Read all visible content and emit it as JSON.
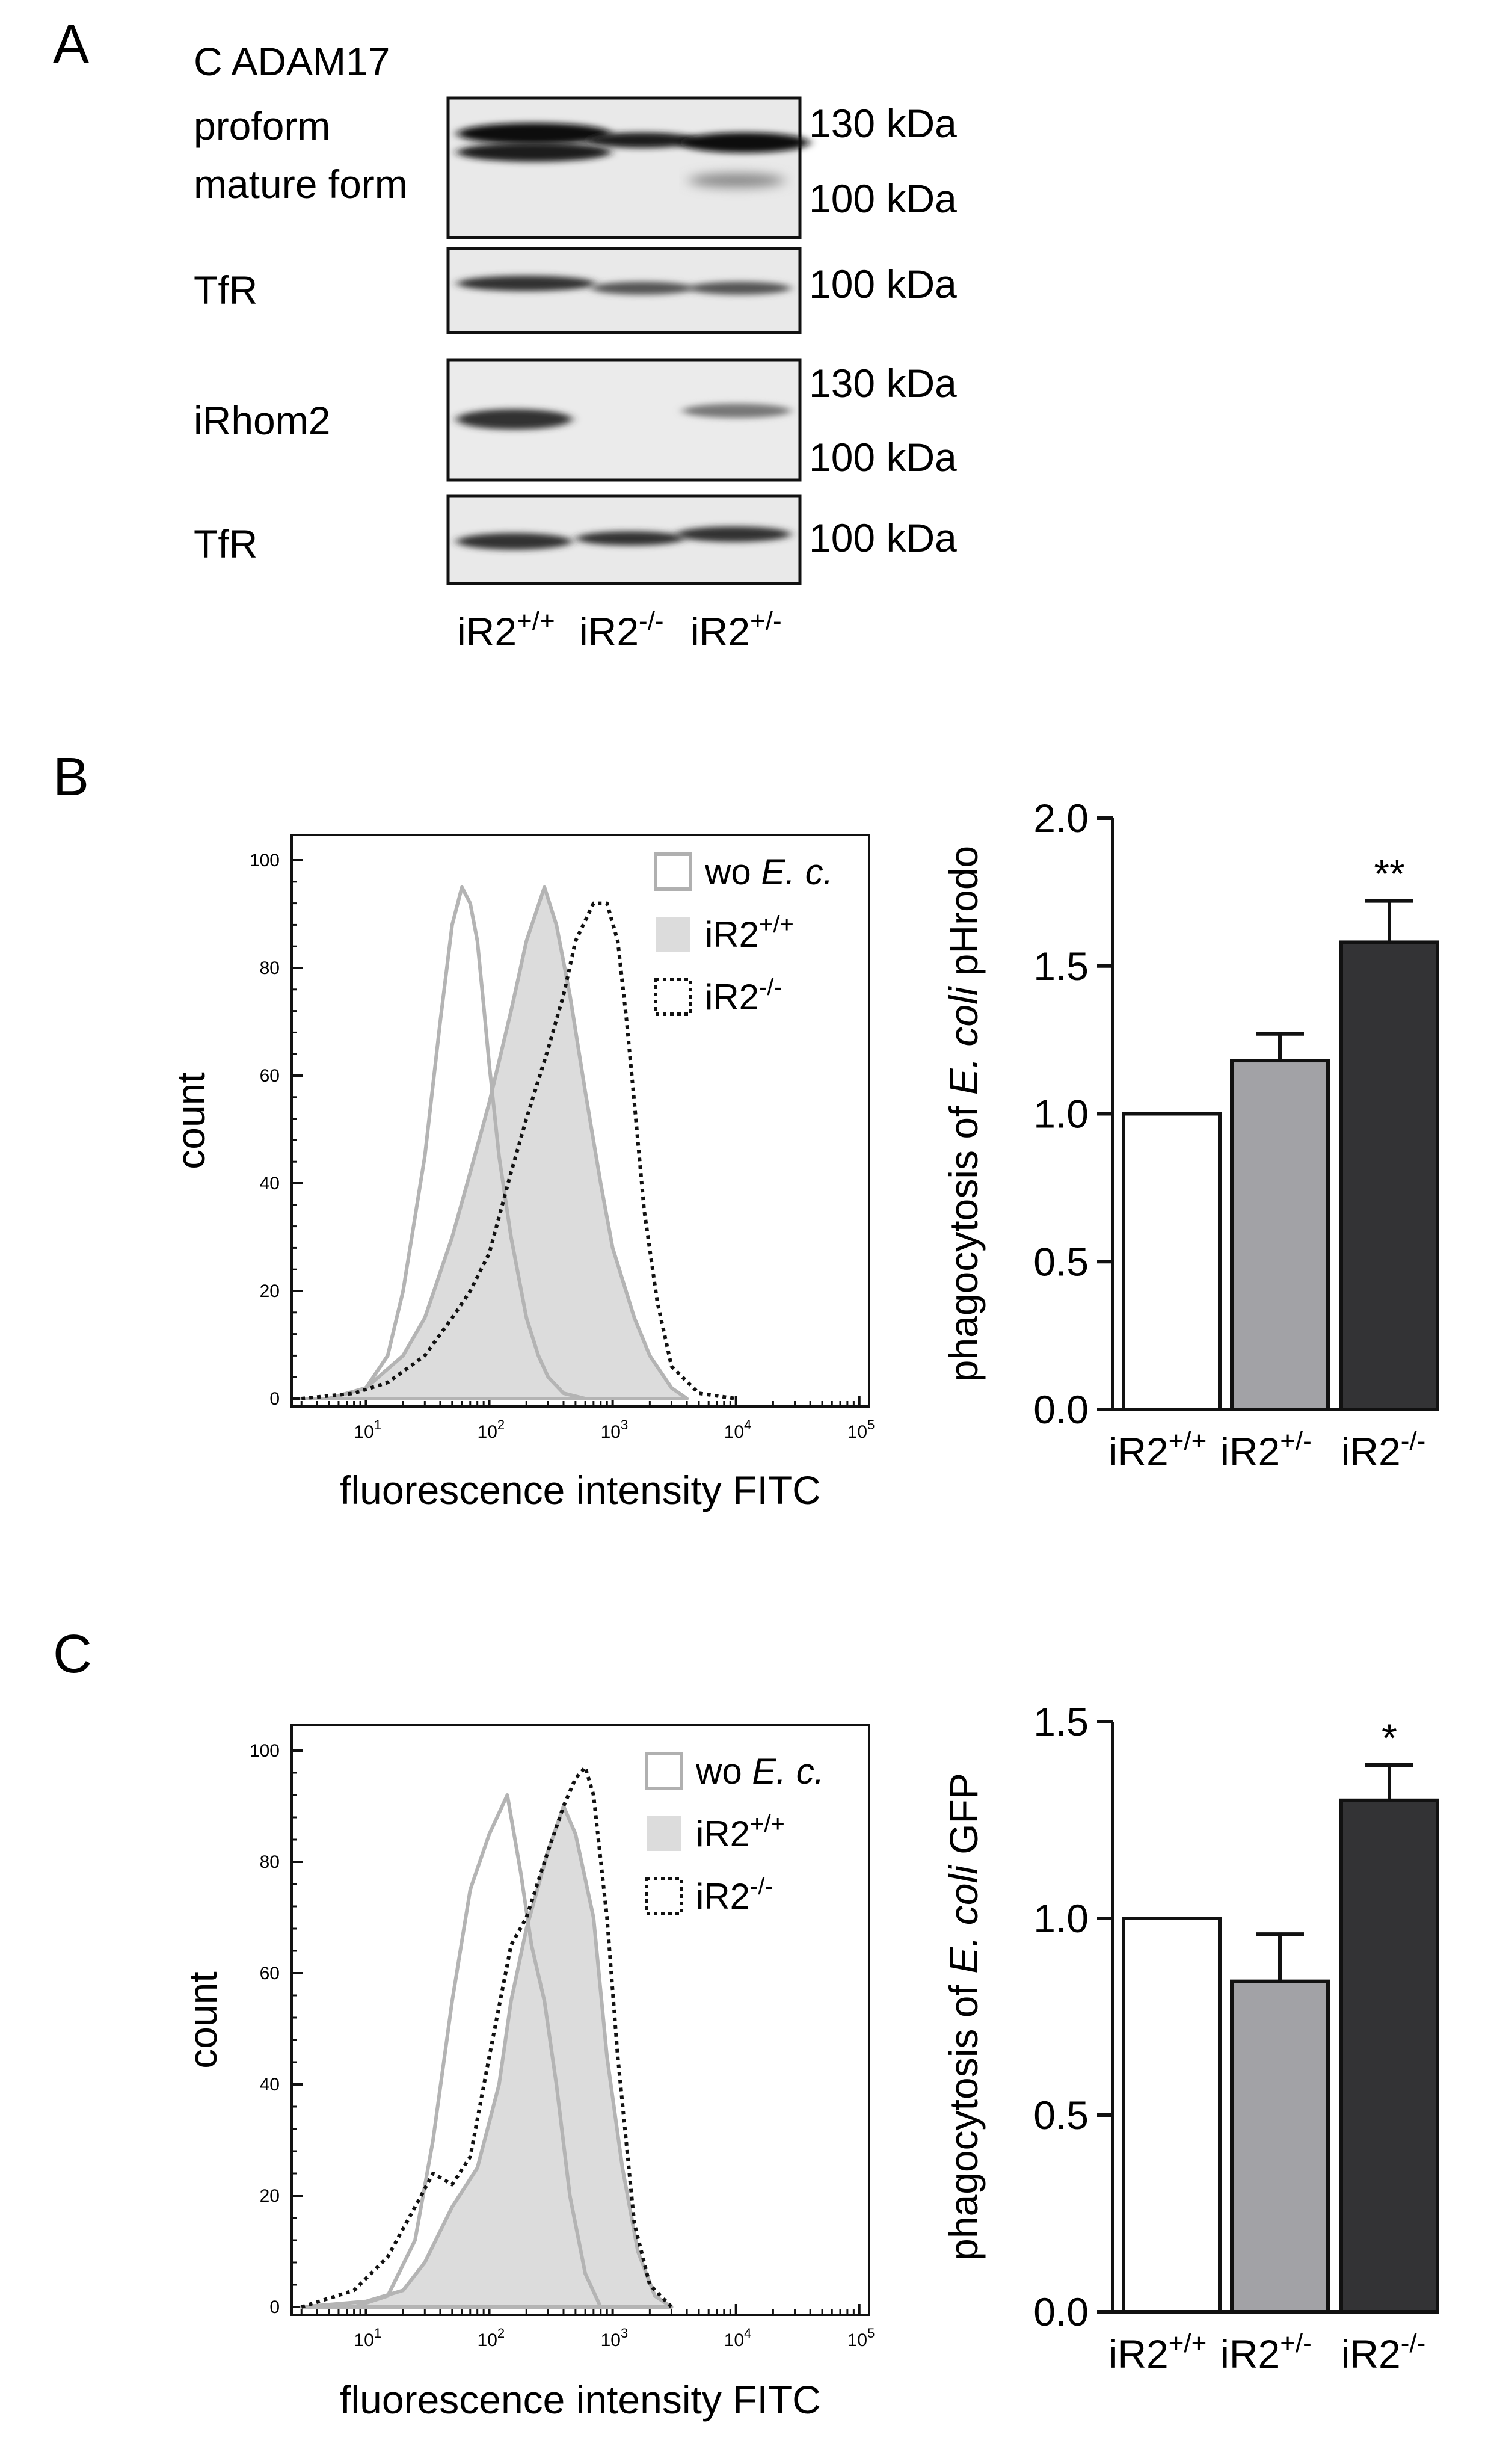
{
  "panels": {
    "a": {
      "letter": "A",
      "header": "C ADAM17",
      "blots": [
        {
          "name": "adam17",
          "labels": [
            "proform",
            "mature form"
          ],
          "markers": [
            "130 kDa",
            "100 kDa"
          ]
        },
        {
          "name": "tfr-1",
          "labels": [
            "TfR"
          ],
          "markers": [
            "100 kDa"
          ]
        },
        {
          "name": "irhom2",
          "labels": [
            "iRhom2"
          ],
          "markers": [
            "130 kDa",
            "100 kDa"
          ]
        },
        {
          "name": "tfr-2",
          "labels": [
            "TfR"
          ],
          "markers": [
            "100 kDa"
          ]
        }
      ],
      "lanes": [
        {
          "base": "iR2",
          "sup": "+/+"
        },
        {
          "base": "iR2",
          "sup": "-/-"
        },
        {
          "base": "iR2",
          "sup": "+/-"
        }
      ]
    },
    "b": {
      "letter": "B"
    },
    "c": {
      "letter": "C"
    }
  },
  "chart_data": [
    {
      "id": "b-histogram",
      "type": "area",
      "xlabel": "fluorescence intensity FITC",
      "ylabel": "count",
      "xscale": "log",
      "xlim": [
        2.5,
        120000
      ],
      "ylim": [
        0,
        100
      ],
      "xticks": [
        {
          "base": "10",
          "exp": "1"
        },
        {
          "base": "10",
          "exp": "2"
        },
        {
          "base": "10",
          "exp": "3"
        },
        {
          "base": "10",
          "exp": "4"
        },
        {
          "base": "10",
          "exp": "5"
        }
      ],
      "xtick_values": [
        10,
        100,
        1000,
        10000,
        100000
      ],
      "yticks": [
        0,
        20,
        40,
        60,
        80,
        100
      ],
      "legend": [
        {
          "prefix": "wo ",
          "italic": "E. c.",
          "sup": "",
          "style": "outline-grey"
        },
        {
          "prefix": "iR2",
          "italic": "",
          "sup": "+/+",
          "style": "filled-grey"
        },
        {
          "prefix": "iR2",
          "italic": "",
          "sup": "-/-",
          "style": "dotted-black"
        }
      ],
      "series": [
        {
          "name": "wo E. c.",
          "x": [
            3,
            5,
            10,
            15,
            20,
            30,
            40,
            50,
            60,
            70,
            80,
            90,
            100,
            120,
            150,
            200,
            250,
            300,
            400,
            600
          ],
          "y": [
            0,
            0,
            2,
            8,
            20,
            45,
            70,
            88,
            95,
            92,
            85,
            73,
            62,
            45,
            30,
            15,
            8,
            4,
            1,
            0
          ]
        },
        {
          "name": "iR2+/+",
          "x": [
            3,
            5,
            10,
            20,
            30,
            50,
            70,
            100,
            150,
            200,
            280,
            350,
            450,
            600,
            800,
            1000,
            1500,
            2000,
            3000,
            4000
          ],
          "y": [
            0,
            0,
            2,
            8,
            15,
            30,
            42,
            55,
            72,
            85,
            95,
            88,
            75,
            57,
            40,
            28,
            15,
            8,
            2,
            0
          ]
        },
        {
          "name": "iR2-/-",
          "x": [
            3,
            8,
            15,
            30,
            50,
            70,
            100,
            150,
            200,
            300,
            400,
            500,
            700,
            900,
            1100,
            1300,
            1500,
            1800,
            2300,
            3000,
            5000,
            10000
          ],
          "y": [
            0,
            1,
            3,
            8,
            15,
            20,
            27,
            42,
            52,
            65,
            75,
            85,
            92,
            92,
            85,
            70,
            55,
            35,
            18,
            6,
            1,
            0
          ]
        }
      ]
    },
    {
      "id": "b-bars",
      "type": "bar",
      "ylabel": {
        "pre": "phagocytosis of ",
        "italic": "E. coli",
        "post": " pHrodo"
      },
      "categories": [
        {
          "base": "iR2",
          "sup": "+/+"
        },
        {
          "base": "iR2",
          "sup": "+/-"
        },
        {
          "base": "iR2",
          "sup": "-/-"
        }
      ],
      "values": [
        1.0,
        1.18,
        1.58
      ],
      "errors": [
        0,
        0.09,
        0.14
      ],
      "colors": [
        "#ffffff",
        "#a2a2a6",
        "#333335"
      ],
      "annotations": [
        "",
        "",
        "**"
      ],
      "yticks": [
        "0.0",
        "0.5",
        "1.0",
        "1.5",
        "2.0"
      ],
      "ylim": [
        0,
        2.0
      ]
    },
    {
      "id": "c-histogram",
      "type": "area",
      "xlabel": "fluorescence intensity FITC",
      "ylabel": "count",
      "xscale": "log",
      "xlim": [
        2.5,
        120000
      ],
      "ylim": [
        0,
        100
      ],
      "xticks": [
        {
          "base": "10",
          "exp": "1"
        },
        {
          "base": "10",
          "exp": "2"
        },
        {
          "base": "10",
          "exp": "3"
        },
        {
          "base": "10",
          "exp": "4"
        },
        {
          "base": "10",
          "exp": "5"
        }
      ],
      "xtick_values": [
        10,
        100,
        1000,
        10000,
        100000
      ],
      "yticks": [
        0,
        20,
        40,
        60,
        80,
        100
      ],
      "legend": [
        {
          "prefix": "wo ",
          "italic": "E. c.",
          "sup": "",
          "style": "outline-grey"
        },
        {
          "prefix": "iR2",
          "italic": "",
          "sup": "+/+",
          "style": "filled-grey"
        },
        {
          "prefix": "iR2",
          "italic": "",
          "sup": "-/-",
          "style": "dotted-black"
        }
      ],
      "series": [
        {
          "name": "wo E. c.",
          "x": [
            3,
            8,
            15,
            25,
            35,
            50,
            70,
            100,
            140,
            180,
            220,
            280,
            350,
            450,
            600,
            800
          ],
          "y": [
            0,
            0,
            2,
            12,
            30,
            55,
            75,
            85,
            92,
            78,
            65,
            55,
            40,
            20,
            6,
            0
          ]
        },
        {
          "name": "iR2+/+",
          "x": [
            3,
            10,
            20,
            30,
            50,
            80,
            120,
            150,
            200,
            300,
            400,
            500,
            700,
            900,
            1200,
            1600,
            2200,
            3000
          ],
          "y": [
            0,
            1,
            3,
            8,
            18,
            25,
            40,
            55,
            68,
            82,
            90,
            85,
            70,
            45,
            25,
            10,
            2,
            0
          ]
        },
        {
          "name": "iR2-/-",
          "x": [
            3,
            8,
            15,
            25,
            35,
            50,
            70,
            100,
            150,
            200,
            300,
            400,
            500,
            600,
            700,
            900,
            1100,
            1500,
            2000,
            3000
          ],
          "y": [
            0,
            3,
            9,
            18,
            24,
            22,
            27,
            45,
            65,
            70,
            82,
            90,
            95,
            97,
            92,
            70,
            45,
            15,
            4,
            0
          ]
        }
      ]
    },
    {
      "id": "c-bars",
      "type": "bar",
      "ylabel": {
        "pre": "phagocytosis of ",
        "italic": "E. coli",
        "post": " GFP"
      },
      "categories": [
        {
          "base": "iR2",
          "sup": "+/+"
        },
        {
          "base": "iR2",
          "sup": "+/-"
        },
        {
          "base": "iR2",
          "sup": "-/-"
        }
      ],
      "values": [
        1.0,
        0.84,
        1.3
      ],
      "errors": [
        0,
        0.12,
        0.09
      ],
      "colors": [
        "#ffffff",
        "#a2a2a6",
        "#333335"
      ],
      "annotations": [
        "",
        "",
        "*"
      ],
      "yticks": [
        "0.0",
        "0.5",
        "1.0",
        "1.5"
      ],
      "ylim": [
        0,
        1.5
      ]
    }
  ]
}
